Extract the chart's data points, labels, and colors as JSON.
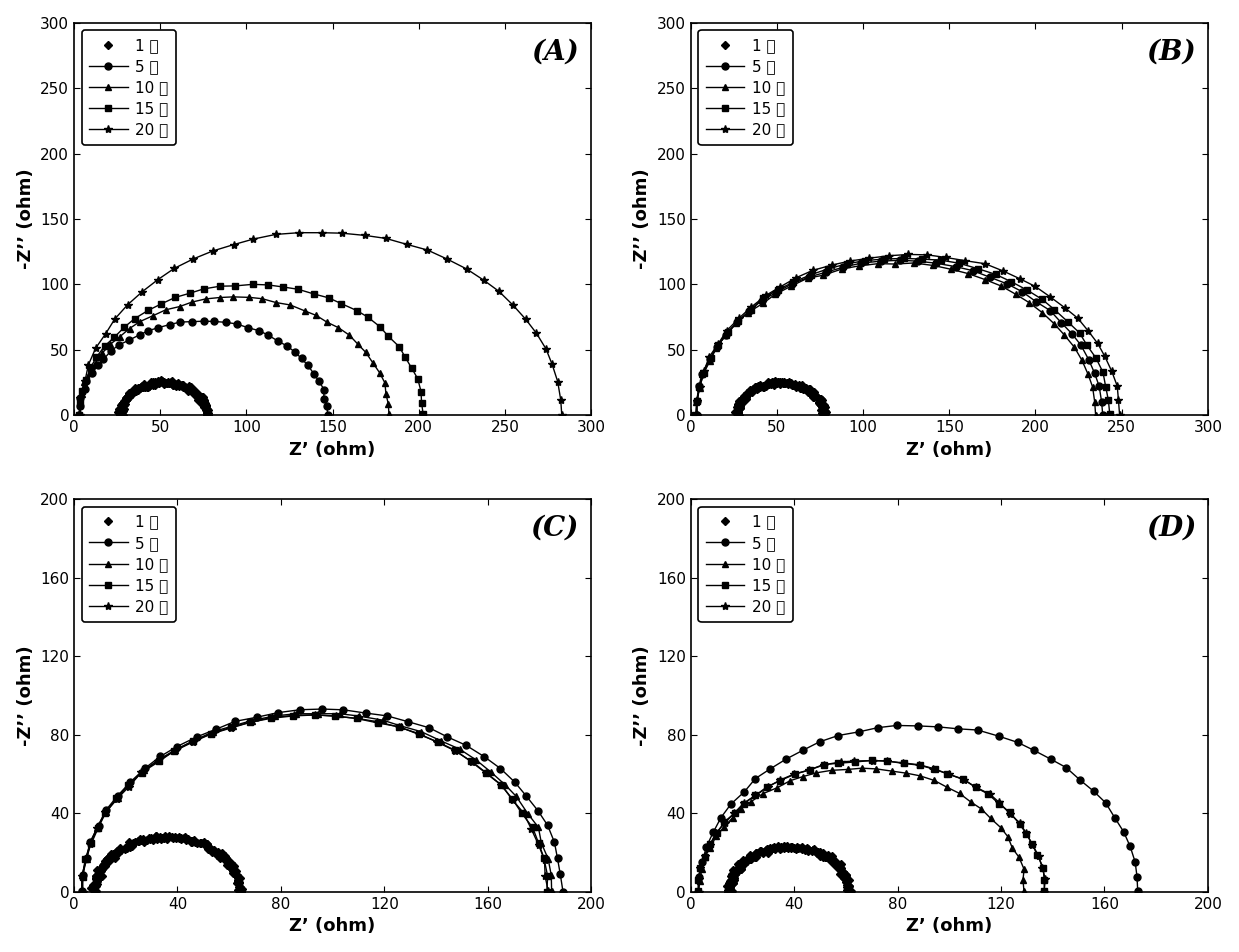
{
  "legend_labels": [
    "1 天",
    "5 天",
    "10 天",
    "15 天",
    "20 天"
  ],
  "xlabel": "Z’ (ohm)",
  "ylabel": "-Z’’ (ohm)",
  "label_fontsize": 13,
  "tick_fontsize": 11,
  "legend_fontsize": 11,
  "panel_label_fontsize": 20,
  "line_width": 1.0,
  "panels": {
    "A": {
      "label": "(A)",
      "xlim": [
        0,
        300
      ],
      "ylim": [
        0,
        300
      ],
      "xticks": [
        0,
        50,
        100,
        150,
        200,
        250,
        300
      ],
      "yticks": [
        0,
        50,
        100,
        150,
        200,
        250,
        300
      ],
      "series": [
        {
          "r": 25,
          "x0": 27,
          "seed": 1,
          "noise": 0.8,
          "marker": "D",
          "ms": 4,
          "dense": true,
          "lw": 0
        },
        {
          "r": 72,
          "x0": 3,
          "seed": 2,
          "noise": 0.8,
          "marker": "o",
          "ms": 5,
          "dense": false,
          "lw": 1.0
        },
        {
          "r": 90,
          "x0": 3,
          "seed": 3,
          "noise": 0.8,
          "marker": "^",
          "ms": 5,
          "dense": false,
          "lw": 1.0
        },
        {
          "r": 100,
          "x0": 3,
          "seed": 4,
          "noise": 0.8,
          "marker": "s",
          "ms": 4,
          "dense": false,
          "lw": 1.0
        },
        {
          "r": 140,
          "x0": 3,
          "seed": 5,
          "noise": 0.8,
          "marker": "*",
          "ms": 6,
          "dense": false,
          "lw": 1.0
        }
      ]
    },
    "B": {
      "label": "(B)",
      "xlim": [
        0,
        300
      ],
      "ylim": [
        0,
        300
      ],
      "xticks": [
        0,
        50,
        100,
        150,
        200,
        250,
        300
      ],
      "yticks": [
        0,
        50,
        100,
        150,
        200,
        250,
        300
      ],
      "series": [
        {
          "r": 25,
          "x0": 27,
          "seed": 10,
          "noise": 0.8,
          "marker": "D",
          "ms": 4,
          "dense": true,
          "lw": 0
        },
        {
          "r": 118,
          "x0": 3,
          "seed": 11,
          "noise": 0.8,
          "marker": "o",
          "ms": 5,
          "dense": false,
          "lw": 1.0
        },
        {
          "r": 116,
          "x0": 3,
          "seed": 12,
          "noise": 0.8,
          "marker": "^",
          "ms": 5,
          "dense": false,
          "lw": 1.0
        },
        {
          "r": 120,
          "x0": 3,
          "seed": 13,
          "noise": 0.8,
          "marker": "s",
          "ms": 4,
          "dense": false,
          "lw": 1.0
        },
        {
          "r": 123,
          "x0": 3,
          "seed": 14,
          "noise": 0.8,
          "marker": "*",
          "ms": 6,
          "dense": false,
          "lw": 1.0
        }
      ]
    },
    "C": {
      "label": "(C)",
      "xlim": [
        0,
        200
      ],
      "ylim": [
        0,
        200
      ],
      "xticks": [
        0,
        40,
        80,
        120,
        160,
        200
      ],
      "yticks": [
        0,
        40,
        80,
        120,
        160,
        200
      ],
      "series": [
        {
          "r": 28,
          "x0": 8,
          "seed": 20,
          "noise": 0.6,
          "marker": "D",
          "ms": 4,
          "dense": true,
          "lw": 0
        },
        {
          "r": 93,
          "x0": 3,
          "seed": 21,
          "noise": 0.6,
          "marker": "o",
          "ms": 5,
          "dense": false,
          "lw": 1.0
        },
        {
          "r": 91,
          "x0": 3,
          "seed": 22,
          "noise": 0.6,
          "marker": "^",
          "ms": 5,
          "dense": false,
          "lw": 1.0
        },
        {
          "r": 90,
          "x0": 3,
          "seed": 23,
          "noise": 0.6,
          "marker": "s",
          "ms": 4,
          "dense": false,
          "lw": 1.0
        },
        {
          "r": 90,
          "x0": 3,
          "seed": 24,
          "noise": 0.6,
          "marker": "*",
          "ms": 6,
          "dense": false,
          "lw": 1.0
        }
      ]
    },
    "D": {
      "label": "(D)",
      "xlim": [
        0,
        200
      ],
      "ylim": [
        0,
        200
      ],
      "xticks": [
        0,
        40,
        80,
        120,
        160,
        200
      ],
      "yticks": [
        0,
        40,
        80,
        120,
        160,
        200
      ],
      "series": [
        {
          "r": 23,
          "x0": 15,
          "seed": 30,
          "noise": 0.6,
          "marker": "D",
          "ms": 4,
          "dense": true,
          "lw": 0
        },
        {
          "r": 85,
          "x0": 3,
          "seed": 31,
          "noise": 0.6,
          "marker": "o",
          "ms": 5,
          "dense": false,
          "lw": 1.0
        },
        {
          "r": 63,
          "x0": 3,
          "seed": 32,
          "noise": 0.6,
          "marker": "^",
          "ms": 5,
          "dense": false,
          "lw": 1.0
        },
        {
          "r": 67,
          "x0": 3,
          "seed": 33,
          "noise": 0.6,
          "marker": "s",
          "ms": 4,
          "dense": false,
          "lw": 1.0
        },
        {
          "r": 67,
          "x0": 3,
          "seed": 34,
          "noise": 0.6,
          "marker": "*",
          "ms": 6,
          "dense": false,
          "lw": 1.0
        }
      ]
    }
  }
}
